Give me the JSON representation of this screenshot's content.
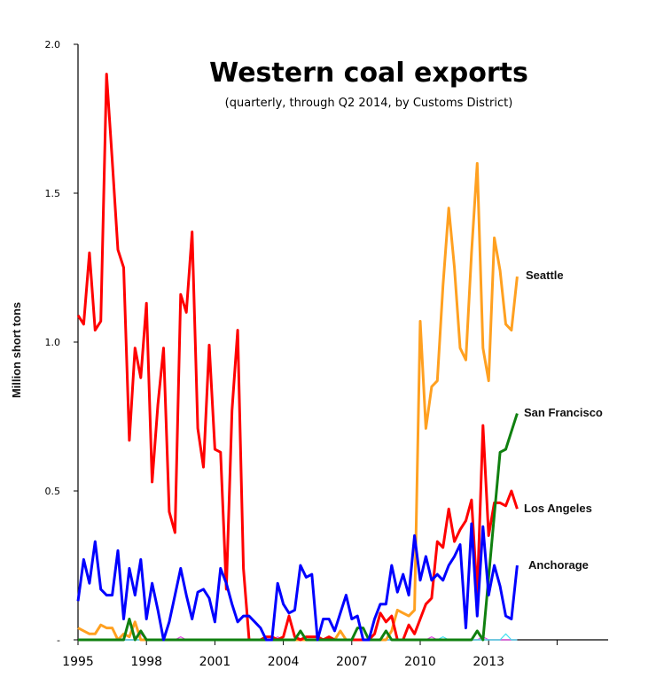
{
  "chart_data": {
    "type": "line",
    "title": "Western coal exports",
    "subtitle": "(quarterly, through Q2 2014, by Customs District)",
    "ylabel": "Million short tons",
    "xlabel": "",
    "ylim": [
      0,
      2.0
    ],
    "yticks": [
      "-",
      "0.5",
      "1.0",
      "1.5",
      "2.0"
    ],
    "xticks": [
      "1995",
      "1998",
      "2001",
      "2004",
      "2007",
      "2010",
      "2013",
      ""
    ],
    "x_start": "1995 Q1",
    "x_end": "2014 Q2",
    "grid": false,
    "legend": "inline labels at line ends",
    "series": [
      {
        "name": "Seattle",
        "color": "#ffa020",
        "label_emphasis": true,
        "values": [
          0.04,
          0.03,
          0.02,
          0.02,
          0.05,
          0.04,
          0.04,
          0.0,
          0.02,
          0.01,
          0.06,
          0.0,
          0,
          0,
          0,
          0,
          0,
          0,
          0,
          0,
          0,
          0,
          0,
          0,
          0,
          0,
          0,
          0,
          0,
          0,
          0,
          0,
          0,
          0,
          0,
          0,
          0,
          0,
          0,
          0,
          0,
          0,
          0,
          0,
          0,
          0,
          0.03,
          0,
          0,
          0,
          0,
          0,
          0,
          0,
          0,
          0.03,
          0.1,
          0.09,
          0.08,
          0.1,
          1.07,
          0.71,
          0.85,
          0.87,
          1.19,
          1.45,
          1.25,
          0.98,
          0.94,
          1.3,
          1.6,
          0.98,
          0.87,
          1.35,
          1.24,
          1.06,
          1.04,
          1.22
        ]
      },
      {
        "name": "San Francisco",
        "color": "#108010",
        "values": [
          0,
          0,
          0,
          0,
          0,
          0,
          0,
          0,
          0,
          0.07,
          0,
          0.03,
          0,
          0,
          0,
          0,
          0,
          0,
          0,
          0,
          0,
          0,
          0,
          0,
          0,
          0,
          0,
          0,
          0,
          0,
          0,
          0,
          0,
          0,
          0,
          0,
          0,
          0,
          0,
          0.03,
          0,
          0,
          0,
          0,
          0,
          0,
          0,
          0,
          0,
          0.04,
          0.04,
          0,
          0,
          0,
          0.03,
          0,
          0,
          0,
          0,
          0,
          0,
          0,
          0,
          0,
          0,
          0,
          0,
          0,
          0,
          0,
          0.03,
          0,
          0.21,
          0.42,
          0.63,
          0.64,
          0.7,
          0.76
        ]
      },
      {
        "name": "Los Angeles",
        "color": "#ff0000",
        "values": [
          1.09,
          1.06,
          1.3,
          1.04,
          1.07,
          1.9,
          1.61,
          1.31,
          1.25,
          0.67,
          0.98,
          0.88,
          1.13,
          0.53,
          0.79,
          0.98,
          0.43,
          0.36,
          1.16,
          1.1,
          1.37,
          0.71,
          0.58,
          0.99,
          0.64,
          0.63,
          0.17,
          0.77,
          1.04,
          0.24,
          0,
          0,
          0,
          0.01,
          0.01,
          0,
          0.01,
          0.08,
          0.01,
          0,
          0.01,
          0.01,
          0.01,
          0,
          0.01,
          0,
          0,
          0,
          0,
          0,
          0,
          0,
          0.02,
          0.09,
          0.06,
          0.08,
          0,
          0,
          0.05,
          0.02,
          0.07,
          0.12,
          0.14,
          0.33,
          0.31,
          0.44,
          0.33,
          0.37,
          0.4,
          0.47,
          0.15,
          0.72,
          0.35,
          0.46,
          0.46,
          0.45,
          0.5,
          0.44
        ]
      },
      {
        "name": "Anchorage",
        "color": "#0000ff",
        "values": [
          0.13,
          0.27,
          0.19,
          0.33,
          0.17,
          0.15,
          0.15,
          0.3,
          0.07,
          0.24,
          0.15,
          0.27,
          0.07,
          0.19,
          0.1,
          0.0,
          0.06,
          0.15,
          0.24,
          0.15,
          0.07,
          0.16,
          0.17,
          0.14,
          0.06,
          0.24,
          0.19,
          0.12,
          0.06,
          0.08,
          0.08,
          0.06,
          0.04,
          0.0,
          0.0,
          0.19,
          0.12,
          0.09,
          0.1,
          0.25,
          0.21,
          0.22,
          0.0,
          0.07,
          0.07,
          0.03,
          0.09,
          0.15,
          0.07,
          0.08,
          0.0,
          0.0,
          0.07,
          0.12,
          0.12,
          0.25,
          0.16,
          0.22,
          0.15,
          0.35,
          0.2,
          0.28,
          0.2,
          0.22,
          0.2,
          0.25,
          0.28,
          0.32,
          0.04,
          0.39,
          0.08,
          0.38,
          0.15,
          0.25,
          0.18,
          0.08,
          0.07,
          0.25
        ]
      },
      {
        "color": "#e040e0",
        "values": [
          0,
          0,
          0,
          0,
          0,
          0,
          0,
          0,
          0,
          0,
          0,
          0.02,
          0,
          0,
          0,
          0,
          0,
          0,
          0.01,
          0,
          0,
          0,
          0,
          0,
          0,
          0,
          0,
          0,
          0,
          0,
          0,
          0,
          0,
          0,
          0,
          0.01,
          0,
          0,
          0,
          0,
          0,
          0,
          0,
          0,
          0,
          0,
          0,
          0,
          0,
          0,
          0,
          0,
          0,
          0,
          0,
          0,
          0,
          0,
          0,
          0,
          0,
          0,
          0.01,
          0,
          0,
          0,
          0,
          0,
          0,
          0,
          0,
          0.01,
          0,
          0,
          0,
          0,
          0,
          0
        ]
      },
      {
        "color": "#40e0f0",
        "values": [
          0,
          0,
          0,
          0,
          0,
          0,
          0,
          0,
          0,
          0,
          0,
          0,
          0,
          0,
          0,
          0,
          0,
          0,
          0,
          0,
          0,
          0,
          0,
          0,
          0,
          0,
          0,
          0,
          0,
          0,
          0,
          0,
          0,
          0,
          0,
          0,
          0,
          0,
          0,
          0,
          0,
          0,
          0,
          0,
          0,
          0,
          0,
          0,
          0,
          0,
          0,
          0,
          0,
          0,
          0,
          0,
          0,
          0,
          0,
          0,
          0,
          0,
          0,
          0,
          0.01,
          0,
          0,
          0,
          0,
          0,
          0,
          0,
          0,
          0,
          0,
          0.02,
          0,
          0
        ]
      }
    ]
  }
}
